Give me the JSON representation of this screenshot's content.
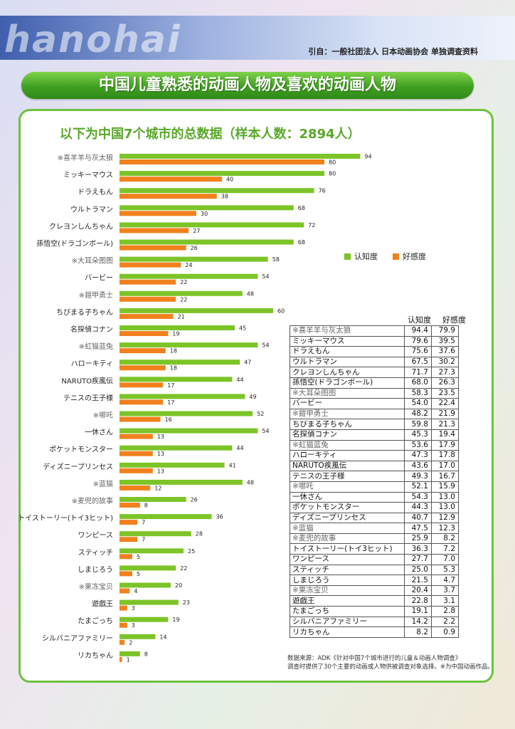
{
  "header": {
    "logo": "hanohai",
    "source_ref": "引自：一般社团法人 日本动画协会 单独调查资料"
  },
  "title": "中国儿童熟悉的动画人物及喜欢的动画人物",
  "subtitle": "以下为中国7个城市的总数据（样本人数：2894人）",
  "colors": {
    "awareness": "#7cc428",
    "favorability": "#f0811e"
  },
  "chart_data": {
    "type": "bar",
    "orientation": "horizontal",
    "legend": {
      "position": "right"
    },
    "categories": [
      "※喜羊羊与灰太狼",
      "ミッキーマウス",
      "ドラえもん",
      "ウルトラマン",
      "クレヨンしんちゃん",
      "孫悟空(ドラゴンボール)",
      "※大耳朵图图",
      "バービー",
      "※鎧甲勇士",
      "ちびまる子ちゃん",
      "名探偵コナン",
      "※虹猫蓝兔",
      "ハローキティ",
      "NARUTO疾風伝",
      "テニスの王子様",
      "※哪吒",
      "一休さん",
      "ポケットモンスター",
      "ディズニープリンセス",
      "※蓝猫",
      "※麦兜的故事",
      "トイストーリー(トイ3ヒット)",
      "ワンピース",
      "スティッチ",
      "しまじろう",
      "※果冻宝贝",
      "遊戯王",
      "たまごっち",
      "シルバニアファミリー",
      "リカちゃん"
    ],
    "series": [
      {
        "name": "认知度",
        "values": [
          94,
          80,
          76,
          68,
          72,
          68,
          58,
          54,
          48,
          60,
          45,
          54,
          47,
          44,
          49,
          52,
          54,
          44,
          41,
          48,
          26,
          36,
          28,
          25,
          22,
          20,
          23,
          19,
          14,
          8
        ]
      },
      {
        "name": "好感度",
        "values": [
          80,
          40,
          38,
          30,
          27,
          26,
          24,
          22,
          22,
          21,
          19,
          18,
          18,
          17,
          17,
          16,
          13,
          13,
          13,
          12,
          8,
          7,
          7,
          5,
          5,
          4,
          3,
          3,
          2,
          1
        ]
      }
    ]
  },
  "table": {
    "headers": [
      "认知度",
      "好感度"
    ],
    "rows": [
      {
        "name": "※喜羊羊与灰太狼",
        "a": "94.4",
        "f": "79.9"
      },
      {
        "name": "ミッキーマウス",
        "a": "79.6",
        "f": "39.5"
      },
      {
        "name": "ドラえもん",
        "a": "75.6",
        "f": "37.6"
      },
      {
        "name": "ウルトラマン",
        "a": "67.5",
        "f": "30.2"
      },
      {
        "name": "クレヨンしんちゃん",
        "a": "71.7",
        "f": "27.3"
      },
      {
        "name": "孫悟空(ドラゴンボール)",
        "a": "68.0",
        "f": "26.3"
      },
      {
        "name": "※大耳朵图图",
        "a": "58.3",
        "f": "23.5"
      },
      {
        "name": "バービー",
        "a": "54.0",
        "f": "22.4"
      },
      {
        "name": "※鎧甲勇士",
        "a": "48.2",
        "f": "21.9"
      },
      {
        "name": "ちびまる子ちゃん",
        "a": "59.8",
        "f": "21.3"
      },
      {
        "name": "名探偵コナン",
        "a": "45.3",
        "f": "19.4"
      },
      {
        "name": "※虹猫蓝兔",
        "a": "53.6",
        "f": "17.9"
      },
      {
        "name": "ハローキティ",
        "a": "47.3",
        "f": "17.8"
      },
      {
        "name": "NARUTO疾風伝",
        "a": "43.6",
        "f": "17.0"
      },
      {
        "name": "テニスの王子様",
        "a": "49.3",
        "f": "16.7"
      },
      {
        "name": "※哪吒",
        "a": "52.1",
        "f": "15.9"
      },
      {
        "name": "一休さん",
        "a": "54.3",
        "f": "13.0"
      },
      {
        "name": "ポケットモンスター",
        "a": "44.3",
        "f": "13.0"
      },
      {
        "name": "ディズニープリンセス",
        "a": "40.7",
        "f": "12.9"
      },
      {
        "name": "※蓝猫",
        "a": "47.5",
        "f": "12.3"
      },
      {
        "name": "※麦兜的故事",
        "a": "25.9",
        "f": "8.2"
      },
      {
        "name": "トイストーリー(トイ3ヒット)",
        "a": "36.3",
        "f": "7.2"
      },
      {
        "name": "ワンピース",
        "a": "27.7",
        "f": "7.0"
      },
      {
        "name": "スティッチ",
        "a": "25.0",
        "f": "5.3"
      },
      {
        "name": "しまじろう",
        "a": "21.5",
        "f": "4.7"
      },
      {
        "name": "※果冻宝贝",
        "a": "20.4",
        "f": "3.7"
      },
      {
        "name": "遊戯王",
        "a": "22.8",
        "f": "3.1"
      },
      {
        "name": "たまごっち",
        "a": "19.1",
        "f": "2.8"
      },
      {
        "name": "シルバニアファミリー",
        "a": "14.2",
        "f": "2.2"
      },
      {
        "name": "リカちゃん",
        "a": "8.2",
        "f": "0.9"
      }
    ]
  },
  "footnote": {
    "line1": "数据来源：ADK《针对中国7个城市进行的儿童＆动画人物调查》",
    "line2": "调查时提供了30个主要的动画或人物供被调查对象选择。※为中国动画作品。"
  }
}
